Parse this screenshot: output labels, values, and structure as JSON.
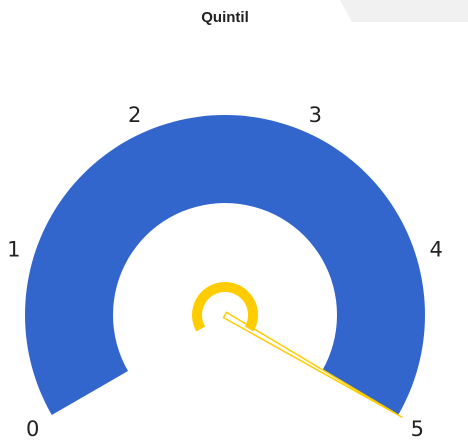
{
  "chart_data": {
    "type": "gauge",
    "title": "Quintil",
    "value": 5,
    "ylim": [
      0,
      5
    ],
    "yticks": [
      0,
      1,
      2,
      3,
      4,
      5
    ],
    "color": "#3366cc",
    "needle_color": "#ffcc00"
  }
}
